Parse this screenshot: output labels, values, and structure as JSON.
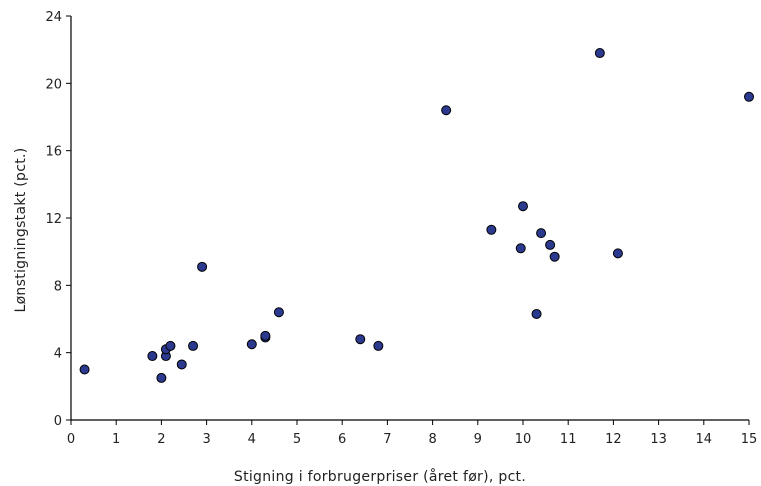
{
  "chart_data": {
    "type": "scatter",
    "title": "",
    "xlabel": "Stigning i forbrugerpriser (året før), pct.",
    "ylabel": "Lønstigningstakt (pct.)",
    "xlim": [
      0,
      15
    ],
    "ylim": [
      0,
      24
    ],
    "x_ticks": [
      "0",
      "1",
      "2",
      "3",
      "4",
      "5",
      "6",
      "7",
      "8",
      "9",
      "10",
      "11",
      "12",
      "13",
      "14",
      "15"
    ],
    "y_ticks": [
      "0",
      "4",
      "8",
      "12",
      "16",
      "20",
      "24"
    ],
    "grid": false,
    "legend": "none",
    "marker_color": "#2b3a8f",
    "marker_edge_color": "#000000",
    "points": [
      {
        "x": 0.3,
        "y": 3.0
      },
      {
        "x": 1.8,
        "y": 3.8
      },
      {
        "x": 2.0,
        "y": 2.5
      },
      {
        "x": 2.1,
        "y": 3.8
      },
      {
        "x": 2.1,
        "y": 4.2
      },
      {
        "x": 2.2,
        "y": 4.4
      },
      {
        "x": 2.45,
        "y": 3.3
      },
      {
        "x": 2.7,
        "y": 4.4
      },
      {
        "x": 2.9,
        "y": 9.1
      },
      {
        "x": 4.0,
        "y": 4.5
      },
      {
        "x": 4.3,
        "y": 4.9
      },
      {
        "x": 4.3,
        "y": 5.0
      },
      {
        "x": 4.6,
        "y": 6.4
      },
      {
        "x": 6.4,
        "y": 4.8
      },
      {
        "x": 6.8,
        "y": 4.4
      },
      {
        "x": 8.3,
        "y": 18.4
      },
      {
        "x": 9.3,
        "y": 11.3
      },
      {
        "x": 9.95,
        "y": 10.2
      },
      {
        "x": 10.0,
        "y": 12.7
      },
      {
        "x": 10.3,
        "y": 6.3
      },
      {
        "x": 10.4,
        "y": 11.1
      },
      {
        "x": 10.6,
        "y": 10.4
      },
      {
        "x": 10.7,
        "y": 9.7
      },
      {
        "x": 11.7,
        "y": 21.8
      },
      {
        "x": 12.1,
        "y": 9.9
      },
      {
        "x": 15.0,
        "y": 19.2
      }
    ]
  }
}
